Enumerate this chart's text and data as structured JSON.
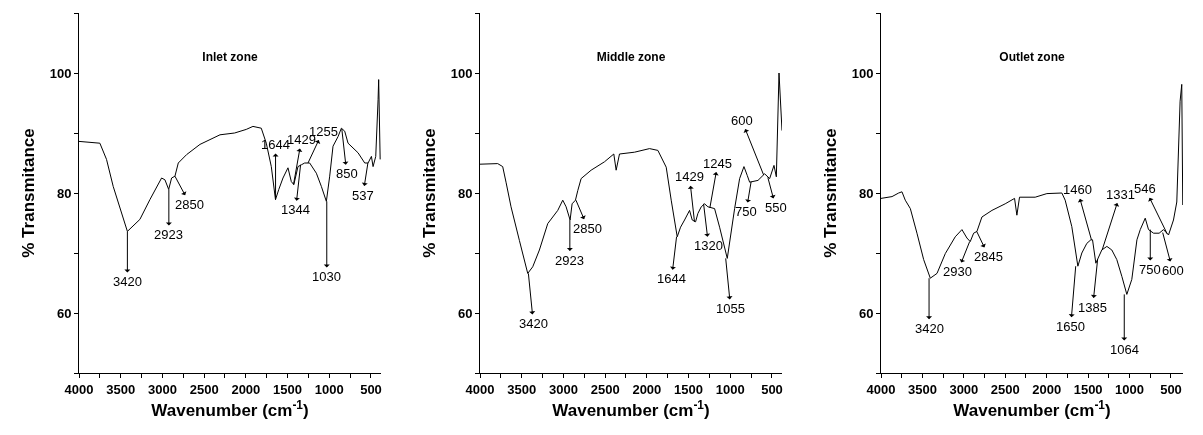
{
  "chart_data": [
    {
      "type": "line",
      "title": "Inlet zone",
      "xlabel": "Wavenumber (cm$^{-1}$)",
      "ylabel": "% Transmitance",
      "xlim": [
        4000,
        380
      ],
      "ylim": [
        50,
        110
      ],
      "xticks": [
        4000,
        {
          "value": 3750,
          "label": null
        },
        3500,
        {
          "value": 3250,
          "label": null
        },
        3000,
        {
          "value": 2750,
          "label": null
        },
        2500,
        {
          "value": 2250,
          "label": null
        },
        2000,
        {
          "value": 1750,
          "label": null
        },
        1500,
        {
          "value": 1250,
          "label": null
        },
        1000,
        {
          "value": 750,
          "label": null
        },
        500
      ],
      "yticks": [
        {
          "value": 50,
          "label": null
        },
        60,
        {
          "value": 70,
          "label": null
        },
        80,
        {
          "value": 90,
          "label": null
        },
        100,
        {
          "value": 110,
          "label": null
        }
      ],
      "series": [
        {
          "color": "#000000",
          "x": [
            4000,
            3750,
            3670,
            3590,
            3420,
            3270,
            3150,
            3010,
            2970,
            2925,
            2890,
            2850,
            2810,
            2710,
            2550,
            2310,
            2135,
            1995,
            1915,
            1815,
            1755,
            1695,
            1645,
            1605,
            1555,
            1495,
            1455,
            1425,
            1375,
            1335,
            1295,
            1235,
            1155,
            1095,
            1035,
            995,
            955,
            895,
            855,
            815,
            775,
            655,
            575,
            535,
            495,
            475,
            443,
            415,
            408,
            390
          ],
          "values": [
            88.6,
            88.3,
            85.6,
            81.1,
            73.6,
            75.6,
            78.9,
            82.5,
            82.2,
            80.6,
            82.5,
            82.8,
            85,
            86.4,
            88.1,
            89.7,
            90,
            90.6,
            91.1,
            90.8,
            88.3,
            84.4,
            78.9,
            80.6,
            82.5,
            84.2,
            81.9,
            81.4,
            84.4,
            84.7,
            85,
            85,
            83.3,
            81.1,
            78.6,
            82.8,
            87.8,
            89.4,
            90.8,
            90.3,
            88.3,
            86.7,
            85,
            85,
            86.1,
            84.4,
            86.1,
            95.6,
            98.9,
            85.6
          ]
        }
      ],
      "annotations": [
        {
          "text": "3420",
          "x": 3420,
          "y": 73.6
        },
        {
          "text": "2923",
          "x": 2923,
          "y": 80.6
        },
        {
          "text": "2850",
          "x": 2850,
          "y": 82.8
        },
        {
          "text": "1644",
          "x": 1644,
          "y": 78.9
        },
        {
          "text": "1429",
          "x": 1429,
          "y": 81.4
        },
        {
          "text": "1344",
          "x": 1344,
          "y": 84.7
        },
        {
          "text": "1255",
          "x": 1255,
          "y": 85
        },
        {
          "text": "1030",
          "x": 1030,
          "y": 78.6
        },
        {
          "text": "850",
          "x": 850,
          "y": 90.7
        },
        {
          "text": "537",
          "x": 537,
          "y": 85
        }
      ]
    },
    {
      "type": "line",
      "title": "Middle zone",
      "xlabel": "Wavenumber (cm$^{-1}$)",
      "ylabel": "% Transmitance",
      "xlim": [
        4000,
        380
      ],
      "ylim": [
        50,
        110
      ],
      "xticks": [
        4000,
        {
          "value": 3750,
          "label": null
        },
        3500,
        {
          "value": 3250,
          "label": null
        },
        3000,
        {
          "value": 2750,
          "label": null
        },
        2500,
        {
          "value": 2250,
          "label": null
        },
        2000,
        {
          "value": 1750,
          "label": null
        },
        1500,
        {
          "value": 1250,
          "label": null
        },
        1000,
        {
          "value": 750,
          "label": null
        },
        500
      ],
      "yticks": [
        {
          "value": 50,
          "label": null
        },
        60,
        {
          "value": 70,
          "label": null
        },
        80,
        {
          "value": 90,
          "label": null
        },
        100,
        {
          "value": 110,
          "label": null
        }
      ],
      "series": [
        {
          "color": "#000000",
          "x": [
            4000,
            3788,
            3728,
            3688,
            3628,
            3528,
            3428,
            3368,
            3288,
            3188,
            3068,
            3008,
            2968,
            2920,
            2896,
            2856,
            2828,
            2788,
            2668,
            2508,
            2396,
            2368,
            2328,
            2148,
            1968,
            1868,
            1768,
            1708,
            1636,
            1596,
            1548,
            1488,
            1456,
            1416,
            1388,
            1348,
            1308,
            1268,
            1188,
            1128,
            1036,
            948,
            888,
            836,
            796,
            768,
            668,
            588,
            528,
            476,
            448,
            416,
            380
          ],
          "values": [
            84.8,
            84.9,
            84.4,
            81.8,
            77.7,
            72.1,
            66.6,
            67.7,
            70.5,
            74.9,
            77.1,
            78.8,
            77.7,
            75.5,
            78.2,
            78.8,
            80.4,
            82.4,
            83.8,
            85.2,
            86.5,
            83.8,
            86.5,
            86.8,
            87.4,
            87.1,
            84.3,
            78.8,
            72.7,
            74.3,
            75.5,
            77.1,
            75.5,
            75.2,
            76.6,
            77.7,
            78.2,
            77.7,
            77.4,
            74.3,
            69.1,
            77.4,
            82.4,
            84.4,
            82.9,
            81.8,
            82.1,
            83.2,
            82.4,
            84.6,
            82.7,
            100,
            90.4
          ]
        }
      ],
      "annotations": [
        {
          "text": "3420",
          "x": 3420,
          "y": 66.6
        },
        {
          "text": "2923",
          "x": 2923,
          "y": 75.5
        },
        {
          "text": "2850",
          "x": 2850,
          "y": 78.8
        },
        {
          "text": "1644",
          "x": 1644,
          "y": 72.7
        },
        {
          "text": "1429",
          "x": 1429,
          "y": 75.2
        },
        {
          "text": "1320",
          "x": 1320,
          "y": 78.2
        },
        {
          "text": "1245",
          "x": 1245,
          "y": 77.5
        },
        {
          "text": "1055",
          "x": 1055,
          "y": 69.1
        },
        {
          "text": "600",
          "x": 600,
          "y": 83
        },
        {
          "text": "750",
          "x": 750,
          "y": 81.9
        },
        {
          "text": "550",
          "x": 550,
          "y": 82.6
        }
      ]
    },
    {
      "type": "line",
      "title": "Outlet zone",
      "xlabel": "Wavenumber (cm$^{-1}$)",
      "ylabel": "% Transmitance",
      "xlim": [
        4000,
        355
      ],
      "ylim": [
        50,
        110
      ],
      "xticks": [
        4000,
        {
          "value": 3750,
          "label": null
        },
        3500,
        {
          "value": 3250,
          "label": null
        },
        3000,
        {
          "value": 2750,
          "label": null
        },
        2500,
        {
          "value": 2250,
          "label": null
        },
        2000,
        {
          "value": 1750,
          "label": null
        },
        1500,
        {
          "value": 1250,
          "label": null
        },
        1000,
        {
          "value": 750,
          "label": null
        },
        500
      ],
      "yticks": [
        {
          "value": 50,
          "label": null
        },
        60,
        {
          "value": 70,
          "label": null
        },
        80,
        {
          "value": 90,
          "label": null
        },
        100,
        {
          "value": 110,
          "label": null
        }
      ],
      "series": [
        {
          "color": "#000000",
          "x": [
            4000,
            3867,
            3787,
            3747,
            3707,
            3646,
            3566,
            3485,
            3405,
            3324,
            3224,
            3104,
            3023,
            2963,
            2923,
            2882,
            2842,
            2782,
            2661,
            2501,
            2388,
            2360,
            2328,
            2139,
            1998,
            1817,
            1777,
            1697,
            1624,
            1576,
            1516,
            1467,
            1447,
            1407,
            1335,
            1274,
            1214,
            1154,
            1093,
            1033,
            973,
            911,
            871,
            811,
            771,
            710,
            643,
            590,
            530,
            470,
            430,
            390,
            370,
            358
          ],
          "values": [
            79.1,
            79.4,
            80,
            80.2,
            78.8,
            77.4,
            73.3,
            68.9,
            65.8,
            66.6,
            69.9,
            72.7,
            73.9,
            72.5,
            71.9,
            73.3,
            73.6,
            76,
            77.1,
            78.2,
            79.1,
            76.3,
            79.3,
            79.3,
            79.9,
            80,
            78.8,
            74.4,
            67.8,
            70,
            71.6,
            72.2,
            72.2,
            68.3,
            70.5,
            71.1,
            70.5,
            68.9,
            66.1,
            63.1,
            65.6,
            72.2,
            73.9,
            75.8,
            73.9,
            73.3,
            73.3,
            73.9,
            73,
            75.5,
            78.5,
            95.3,
            98.1,
            78
          ]
        }
      ],
      "annotations": [
        {
          "text": "3420",
          "x": 3420,
          "y": 65.8
        },
        {
          "text": "2930",
          "x": 2930,
          "y": 71.9
        },
        {
          "text": "2845",
          "x": 2845,
          "y": 73.6
        },
        {
          "text": "1650",
          "x": 1650,
          "y": 67.8
        },
        {
          "text": "1460",
          "x": 1460,
          "y": 72.2
        },
        {
          "text": "1331",
          "x": 1331,
          "y": 70.5
        },
        {
          "text": "1385",
          "x": 1385,
          "y": 69
        },
        {
          "text": "1064",
          "x": 1064,
          "y": 63.1
        },
        {
          "text": "750",
          "x": 750,
          "y": 73.9
        },
        {
          "text": "600",
          "x": 600,
          "y": 73.4
        },
        {
          "text": "546",
          "x": 546,
          "y": 73.2
        }
      ]
    }
  ]
}
